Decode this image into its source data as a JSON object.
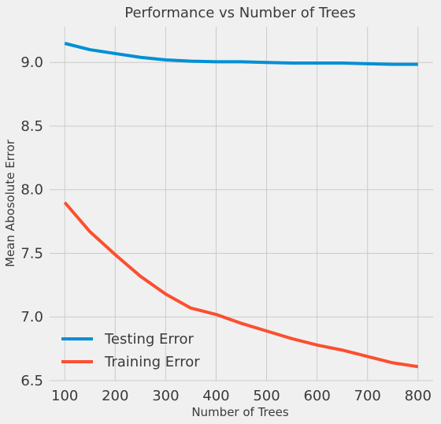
{
  "chart_data": {
    "type": "line",
    "title": "Performance vs Number of Trees",
    "xlabel": "Number of Trees",
    "ylabel": "Mean Abosolute Error",
    "xlim": [
      70,
      830
    ],
    "ylim": [
      6.5,
      9.28
    ],
    "xticks": [
      100,
      200,
      300,
      400,
      500,
      600,
      700,
      800
    ],
    "yticks": [
      6.5,
      7.0,
      7.5,
      8.0,
      8.5,
      9.0
    ],
    "ytick_labels": [
      "6.5",
      "7.0",
      "7.5",
      "8.0",
      "8.5",
      "9.0"
    ],
    "grid": true,
    "legend_position": "lower-left",
    "x": [
      100,
      150,
      200,
      250,
      300,
      350,
      400,
      450,
      500,
      550,
      600,
      650,
      700,
      750,
      800
    ],
    "series": [
      {
        "name": "Testing Error",
        "color": "#008fd5",
        "values": [
          9.15,
          9.1,
          9.07,
          9.04,
          9.02,
          9.01,
          9.005,
          9.005,
          9.0,
          8.995,
          8.995,
          8.995,
          8.99,
          8.985,
          8.985
        ]
      },
      {
        "name": "Training Error",
        "color": "#fc4f30",
        "values": [
          7.9,
          7.67,
          7.49,
          7.32,
          7.18,
          7.07,
          7.02,
          6.95,
          6.89,
          6.83,
          6.78,
          6.74,
          6.69,
          6.64,
          6.61
        ]
      }
    ]
  }
}
